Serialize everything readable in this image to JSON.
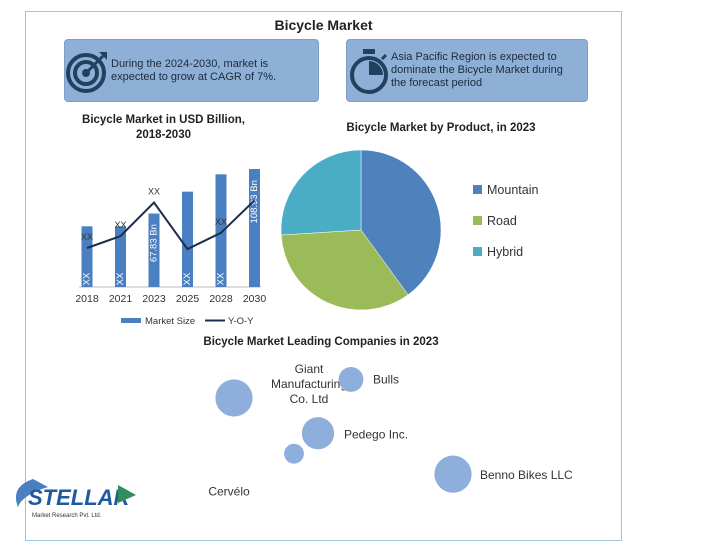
{
  "title": "Bicycle Market",
  "info_left": {
    "text": "During the 2024-2030, market is expected to grow at CAGR of 7%.",
    "icon": "target-icon"
  },
  "info_right": {
    "text": "Asia Pacific Region is expected to dominate the Bicycle Market during the forecast period",
    "icon": "stopwatch-icon"
  },
  "colors": {
    "bar": "#4a7fc1",
    "line": "#1f2d4d",
    "mountain": "#4f81bd",
    "road": "#9bbb59",
    "hybrid": "#4bacc6",
    "banner": "#8fb0d6",
    "bubble": "#8eaedb"
  },
  "logo": {
    "name": "STELLAR",
    "tagline": "Market Research Pvt. Ltd."
  },
  "chart_data": [
    {
      "type": "bar",
      "title": "Bicycle Market in USD Billion, 2018-2030",
      "categories": [
        "2018",
        "2021",
        "2023",
        "2025",
        "2028",
        "2030"
      ],
      "series": [
        {
          "name": "Market Size",
          "kind": "bar",
          "values": [
            56,
            56,
            67.83,
            88,
            104,
            108.93
          ],
          "labels": [
            "XX",
            "XX",
            "67.83 Bn",
            "XX",
            "XX",
            "108.93 Bn"
          ]
        },
        {
          "name": "Y-O-Y",
          "kind": "line",
          "values": [
            36,
            47,
            78,
            35,
            50,
            80
          ],
          "labels": [
            "XX",
            "XX",
            "XX",
            "",
            "XX",
            ""
          ]
        }
      ],
      "ylim": [
        0,
        120
      ]
    },
    {
      "type": "pie",
      "title": "Bicycle Market by Product, in 2023",
      "labels": [
        "Mountain",
        "Road",
        "Hybrid"
      ],
      "values": [
        40,
        34,
        26
      ],
      "legend": "right"
    },
    {
      "type": "scatter",
      "title": "Bicycle Market Leading Companies in 2023",
      "points": [
        {
          "label": "Giant Manufacturing Co. Ltd",
          "x": 1.6,
          "y": 5.6,
          "size": 3
        },
        {
          "label": "Bulls",
          "x": 5.5,
          "y": 6.6,
          "size": 2
        },
        {
          "label": "Pedego Inc.",
          "x": 4.4,
          "y": 3.7,
          "size": 2.6
        },
        {
          "label": "Cervélo",
          "x": 3.6,
          "y": 2.6,
          "size": 1.6
        },
        {
          "label": "Benno Bikes LLC",
          "x": 8.9,
          "y": 1.5,
          "size": 3
        }
      ]
    }
  ]
}
